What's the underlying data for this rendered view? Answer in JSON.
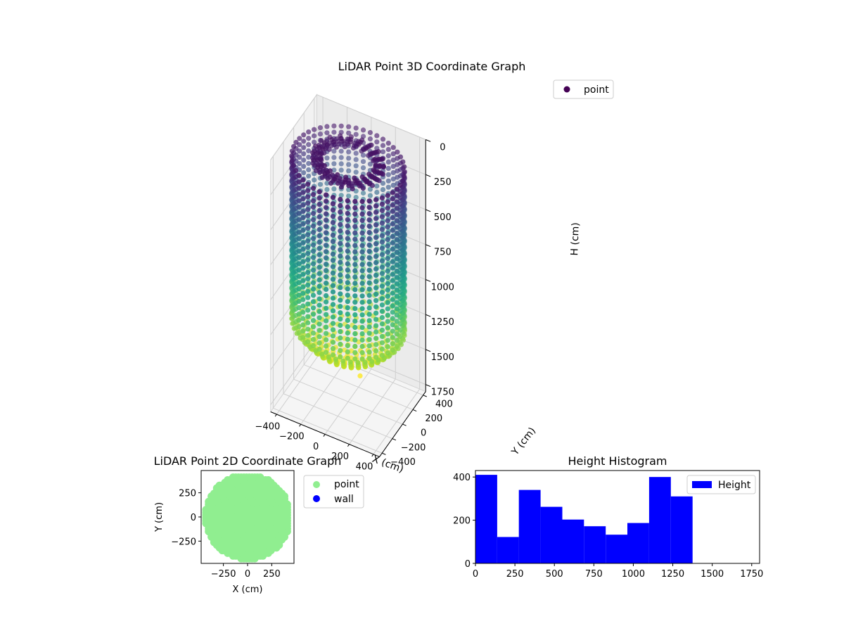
{
  "chart_data": [
    {
      "type": "scatter3d",
      "title": "LiDAR Point 3D Coordinate Graph",
      "xlabel": "X (cm)",
      "ylabel": "Y (cm)",
      "zlabel": "H (cm)",
      "x_ticks": [
        -400,
        -200,
        0,
        200,
        400
      ],
      "y_ticks": [
        -400,
        -200,
        0,
        200,
        400
      ],
      "z_ticks": [
        0,
        250,
        500,
        750,
        1000,
        1250,
        1500,
        1750
      ],
      "xlim": [
        -450,
        450
      ],
      "ylim": [
        -450,
        450
      ],
      "zlim": [
        1800,
        0
      ],
      "z_inverted": true,
      "colormap": "viridis",
      "legend": [
        {
          "label": "point",
          "color": "#440154"
        }
      ],
      "legend_loc": "upper-right",
      "shape": {
        "top_ring": {
          "h_range": [
            70,
            130
          ],
          "radius": 270
        },
        "wall": {
          "h_range": [
            100,
            1250
          ],
          "radius": 430
        },
        "bottom_dome": {
          "h_range": [
            1250,
            1480
          ],
          "radius": 430
        },
        "outlier": {
          "x": 150,
          "y": -120,
          "h": 1500
        }
      }
    },
    {
      "type": "scatter",
      "title": "LiDAR Point 2D Coordinate Graph",
      "xlabel": "X (cm)",
      "ylabel": "Y (cm)",
      "x_ticks": [
        -250,
        0,
        250
      ],
      "y_ticks": [
        250,
        0,
        -250
      ],
      "xlim": [
        -480,
        480
      ],
      "ylim": [
        -480,
        480
      ],
      "series": [
        {
          "name": "point",
          "color": "#90ee90",
          "shape": "disc",
          "radius": 430
        },
        {
          "name": "wall",
          "color": "#0000ff",
          "points": []
        }
      ],
      "legend_loc": "outside-right"
    },
    {
      "type": "histogram",
      "title": "Height Histogram",
      "bin_edges": [
        0,
        137.5,
        275,
        412.5,
        550,
        687.5,
        825,
        962.5,
        1100,
        1237.5,
        1375
      ],
      "counts": [
        410,
        122,
        340,
        262,
        203,
        172,
        133,
        187,
        400,
        310
      ],
      "color": "#0000ff",
      "x_ticks": [
        0,
        250,
        500,
        750,
        1000,
        1250,
        1500,
        1750
      ],
      "y_ticks": [
        0,
        200,
        400
      ],
      "xlim": [
        0,
        1800
      ],
      "ylim": [
        0,
        430
      ],
      "legend": [
        {
          "label": "Height",
          "color": "#0000ff"
        }
      ],
      "legend_loc": "upper-right"
    }
  ]
}
